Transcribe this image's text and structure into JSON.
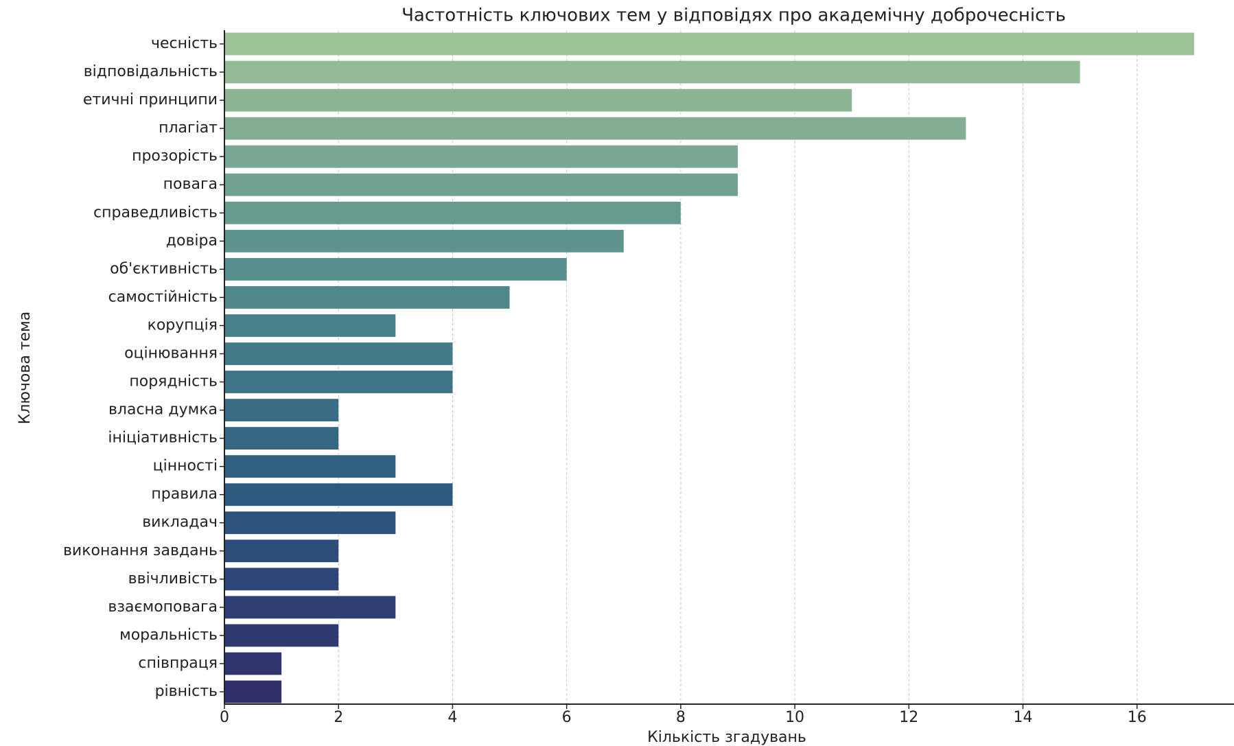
{
  "chart_data": {
    "type": "barh",
    "title": "Частотність ключових тем у відповідях про академічну доброчесність",
    "xlabel": "Кількість згадувань",
    "ylabel": "Ключова тема",
    "categories": [
      "чесність",
      "відповідальність",
      "етичні принципи",
      "плагіат",
      "прозорість",
      "повага",
      "справедливість",
      "довіра",
      "об'єктивність",
      "самостійність",
      "корупція",
      "оцінювання",
      "порядність",
      "власна думка",
      "ініціативність",
      "цінності",
      "правила",
      "викладач",
      "виконання завдань",
      "ввічливість",
      "взаємоповага",
      "моральність",
      "співпраця",
      "рівність"
    ],
    "values": [
      17,
      15,
      11,
      13,
      9,
      9,
      8,
      7,
      6,
      5,
      3,
      4,
      4,
      2,
      2,
      3,
      4,
      3,
      2,
      2,
      3,
      2,
      1,
      1
    ],
    "colors": [
      "#9ec298",
      "#95bb96",
      "#8cb594",
      "#83ae93",
      "#7aa892",
      "#71a190",
      "#689b8f",
      "#5f948e",
      "#578e8c",
      "#50878b",
      "#49818a",
      "#437a88",
      "#3e7487",
      "#396d85",
      "#356783",
      "#316081",
      "#2e5a7f",
      "#2d537d",
      "#2d4d7a",
      "#2d4677",
      "#2e4074",
      "#2f3a71",
      "#30346e",
      "#312f6b"
    ],
    "xlim": [
      0,
      17.7
    ],
    "xticks": [
      0,
      2,
      4,
      6,
      8,
      10,
      12,
      14,
      16
    ],
    "grid": true
  }
}
